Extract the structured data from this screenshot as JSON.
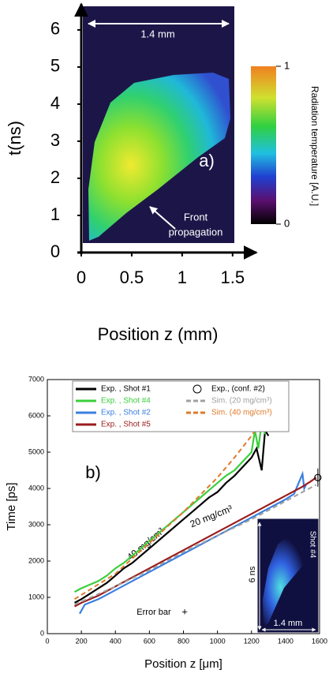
{
  "chart_data": [
    {
      "type": "image",
      "xlabel": "Position z (mm)",
      "ylabel": "t(ns)",
      "xlim": [
        0,
        1.65
      ],
      "xticks": [
        0,
        0.5,
        1,
        1.5
      ],
      "ylim": [
        0,
        6.7
      ],
      "yticks": [
        0,
        1,
        2,
        3,
        4,
        5,
        6
      ],
      "colorbar_label": "Radiation temperature [A.U.]",
      "clim": [
        0,
        1
      ],
      "cticks": [
        0,
        1
      ],
      "annotations": [
        "1.4 mm",
        "a)",
        "Front",
        "propagation"
      ]
    },
    {
      "type": "line",
      "xlabel": "Position z [μm]",
      "ylabel": "Time [ps]",
      "xlim": [
        0,
        1600
      ],
      "xticks": [
        0,
        200,
        400,
        600,
        800,
        1000,
        1200,
        1400,
        1600
      ],
      "ylim": [
        0,
        7000
      ],
      "yticks": [
        0,
        1000,
        2000,
        3000,
        4000,
        5000,
        6000,
        7000
      ],
      "series": [
        {
          "name": "Exp. , Shot #1",
          "color": "#000000",
          "linestyle": "solid",
          "x": [
            160,
            200,
            250,
            300,
            350,
            400,
            450,
            500,
            550,
            600,
            650,
            700,
            750,
            800,
            850,
            900,
            950,
            1000,
            1050,
            1100,
            1150,
            1200,
            1230,
            1260,
            1280,
            1300
          ],
          "values": [
            850,
            950,
            1100,
            1250,
            1400,
            1600,
            1800,
            1950,
            2150,
            2350,
            2550,
            2750,
            2950,
            3150,
            3350,
            3550,
            3750,
            3900,
            4150,
            4350,
            4600,
            4850,
            5100,
            4500,
            5600,
            5450
          ]
        },
        {
          "name": "Exp. , Shot #4",
          "color": "#3ccf3c",
          "linestyle": "solid",
          "x": [
            160,
            200,
            250,
            300,
            350,
            400,
            450,
            500,
            550,
            600,
            650,
            700,
            750,
            800,
            850,
            900,
            950,
            1000,
            1050,
            1100,
            1150,
            1200,
            1220,
            1240,
            1260,
            1280
          ],
          "values": [
            1150,
            1250,
            1350,
            1450,
            1600,
            1800,
            1950,
            2150,
            2350,
            2550,
            2750,
            2950,
            3150,
            3350,
            3550,
            3750,
            3950,
            4150,
            4350,
            4500,
            4750,
            5000,
            5600,
            5100,
            5800,
            5500
          ]
        },
        {
          "name": "Exp. , Shot #2",
          "color": "#3a7fe0",
          "linestyle": "solid",
          "x": [
            190,
            220,
            300,
            400,
            500,
            600,
            700,
            800,
            900,
            1000,
            1100,
            1200,
            1300,
            1400,
            1450,
            1500,
            1510,
            1520
          ],
          "values": [
            550,
            800,
            950,
            1200,
            1450,
            1700,
            1950,
            2200,
            2450,
            2700,
            2950,
            3200,
            3450,
            3700,
            3850,
            4400,
            4000,
            4100
          ]
        },
        {
          "name": "Exp. , Shot #5",
          "color": "#9b1c1c",
          "linestyle": "solid",
          "x": [
            160,
            200,
            300,
            400,
            500,
            600,
            700,
            800,
            900,
            1000,
            1100,
            1200,
            1300,
            1400,
            1500,
            1550,
            1580
          ],
          "values": [
            750,
            850,
            1050,
            1300,
            1550,
            1800,
            2050,
            2300,
            2550,
            2800,
            3050,
            3300,
            3550,
            3800,
            4050,
            4200,
            4300
          ]
        },
        {
          "name": "Exp., (conf. #2)",
          "color": "#000000",
          "linestyle": "none",
          "marker": "circle",
          "x": [
            1590
          ],
          "values": [
            4300
          ],
          "errors": [
            250
          ]
        },
        {
          "name": "Sim. (20 mg/cm³)",
          "color": "#a0a0a0",
          "linestyle": "dashed",
          "x": [
            160,
            400,
            600,
            800,
            1000,
            1200,
            1400,
            1580
          ],
          "values": [
            800,
            1300,
            1750,
            2250,
            2700,
            3150,
            3650,
            4100
          ]
        },
        {
          "name": "Sim. (40 mg/cm³)",
          "color": "#e07a2a",
          "linestyle": "dashed",
          "x": [
            160,
            400,
            600,
            800,
            1000,
            1100,
            1200,
            1250
          ],
          "values": [
            950,
            1650,
            2500,
            3350,
            4300,
            4850,
            5450,
            5800
          ]
        }
      ],
      "annotations": [
        "b)",
        "40 mg/cm³",
        "20 mg/cm³",
        "Error bar",
        "+",
        "6 ns",
        "1.4 mm",
        "Shot #4"
      ]
    }
  ]
}
